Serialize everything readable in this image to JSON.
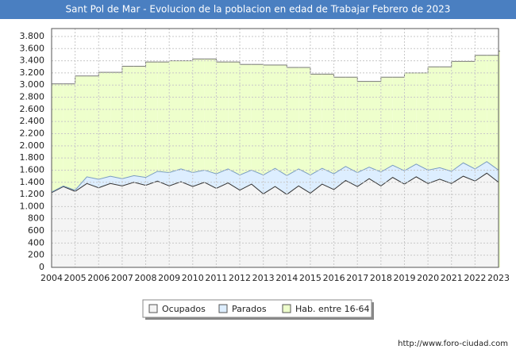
{
  "chart_data": {
    "type": "area",
    "title": "Sant Pol de Mar - Evolucion de la poblacion en edad de Trabajar Febrero de 2023",
    "source": "http://www.foro-ciudad.com",
    "x": [
      2004,
      2004.5,
      2005,
      2005.5,
      2006,
      2006.5,
      2007,
      2007.5,
      2008,
      2008.5,
      2009,
      2009.5,
      2010,
      2010.5,
      2011,
      2011.5,
      2012,
      2012.5,
      2013,
      2013.5,
      2014,
      2014.5,
      2015,
      2015.5,
      2016,
      2016.5,
      2017,
      2017.5,
      2018,
      2018.5,
      2019,
      2019.5,
      2020,
      2020.5,
      2021,
      2021.5,
      2022,
      2022.5,
      2023
    ],
    "series": [
      {
        "name": "Ocupados",
        "color": "#f4f4f4",
        "stroke": "#333333",
        "stacked": true,
        "values": [
          1230,
          1330,
          1250,
          1380,
          1310,
          1380,
          1340,
          1400,
          1350,
          1420,
          1340,
          1410,
          1330,
          1400,
          1300,
          1390,
          1270,
          1370,
          1210,
          1330,
          1200,
          1340,
          1220,
          1370,
          1280,
          1430,
          1330,
          1460,
          1340,
          1480,
          1370,
          1490,
          1380,
          1450,
          1380,
          1500,
          1420,
          1550,
          1400
        ]
      },
      {
        "name": "Parados",
        "color": "#ddeeff",
        "stroke": "#7a9cc0",
        "stacked": true,
        "values": [
          10,
          10,
          20,
          110,
          140,
          120,
          120,
          110,
          130,
          160,
          220,
          210,
          230,
          200,
          240,
          230,
          250,
          230,
          310,
          300,
          310,
          280,
          300,
          260,
          260,
          230,
          230,
          190,
          230,
          200,
          220,
          210,
          220,
          190,
          200,
          220,
          200,
          190,
          200
        ]
      },
      {
        "name": "Hab. entre 16-64",
        "color": "#eeffcc",
        "stroke": "#777777",
        "stacked": false,
        "step": true,
        "values": [
          3020,
          3020,
          3150,
          3150,
          3210,
          3210,
          3310,
          3310,
          3380,
          3380,
          3400,
          3400,
          3430,
          3430,
          3380,
          3380,
          3340,
          3340,
          3330,
          3330,
          3290,
          3290,
          3180,
          3180,
          3130,
          3130,
          3060,
          3060,
          3130,
          3130,
          3200,
          3200,
          3300,
          3300,
          3390,
          3390,
          3490,
          3490,
          3560
        ]
      }
    ],
    "xlim": [
      2004,
      2023
    ],
    "xticks": [
      2004,
      2005,
      2006,
      2007,
      2008,
      2009,
      2010,
      2011,
      2012,
      2013,
      2014,
      2015,
      2016,
      2017,
      2018,
      2019,
      2020,
      2021,
      2022,
      2023
    ],
    "ylim": [
      0,
      3930
    ],
    "yticks": [
      0,
      200,
      400,
      600,
      800,
      {
        "value": 1000,
        "label": "1.000"
      },
      {
        "value": 1200,
        "label": "1.200"
      },
      {
        "value": 1400,
        "label": "1.400"
      },
      {
        "value": 1600,
        "label": "1.600"
      },
      {
        "value": 1800,
        "label": "1.800"
      },
      {
        "value": 2000,
        "label": "2.000"
      },
      {
        "value": 2200,
        "label": "2.200"
      },
      {
        "value": 2400,
        "label": "2.400"
      },
      {
        "value": 2600,
        "label": "2.600"
      },
      {
        "value": 2800,
        "label": "2.800"
      },
      {
        "value": 3000,
        "label": "3.000"
      },
      {
        "value": 3200,
        "label": "3.200"
      },
      {
        "value": 3400,
        "label": "3.400"
      },
      {
        "value": 3600,
        "label": "3.600"
      },
      {
        "value": 3800,
        "label": "3.800"
      }
    ],
    "grid": true
  }
}
